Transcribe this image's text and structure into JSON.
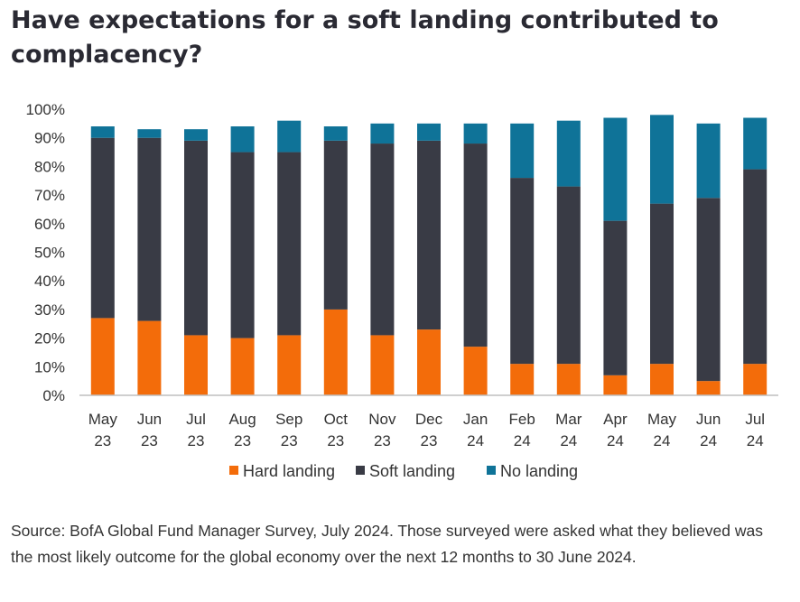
{
  "title": "Have expectations for a soft landing contributed to complacency?",
  "source": "Source: BofA Global Fund Manager Survey, July 2024. Those surveyed were asked what they believed was the most likely outcome for the global economy over the next 12 months to 30 June 2024.",
  "chart_data": {
    "type": "bar",
    "stacked": true,
    "categories": [
      [
        "May",
        "23"
      ],
      [
        "Jun",
        "23"
      ],
      [
        "Jul",
        "23"
      ],
      [
        "Aug",
        "23"
      ],
      [
        "Sep",
        "23"
      ],
      [
        "Oct",
        "23"
      ],
      [
        "Nov",
        "23"
      ],
      [
        "Dec",
        "23"
      ],
      [
        "Jan",
        "24"
      ],
      [
        "Feb",
        "24"
      ],
      [
        "Mar",
        "24"
      ],
      [
        "Apr",
        "24"
      ],
      [
        "May",
        "24"
      ],
      [
        "Jun",
        "24"
      ],
      [
        "Jul",
        "24"
      ]
    ],
    "series": [
      {
        "name": "Hard landing",
        "color": "#f36c0a",
        "values": [
          27,
          26,
          21,
          20,
          21,
          30,
          21,
          23,
          17,
          11,
          11,
          7,
          11,
          5,
          11
        ]
      },
      {
        "name": "Soft landing",
        "color": "#393b45",
        "values": [
          63,
          64,
          68,
          65,
          64,
          59,
          67,
          66,
          71,
          65,
          62,
          54,
          56,
          64,
          68
        ]
      },
      {
        "name": "No landing",
        "color": "#0f7398",
        "values": [
          4,
          3,
          4,
          9,
          11,
          5,
          7,
          6,
          7,
          19,
          23,
          36,
          31,
          26,
          18
        ]
      }
    ],
    "ylim": [
      0,
      100
    ],
    "yticks": [
      "0%",
      "10%",
      "20%",
      "30%",
      "40%",
      "50%",
      "60%",
      "70%",
      "80%",
      "90%",
      "100%"
    ],
    "grid": false,
    "legend_position": "bottom"
  }
}
